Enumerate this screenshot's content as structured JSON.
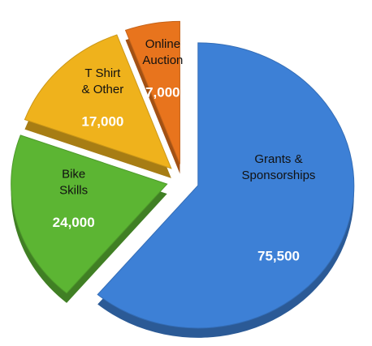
{
  "chart_data": {
    "type": "pie",
    "categories": [
      "Grants &\nSponsorships",
      "Bike\nSkills",
      "T Shirt\n& Other",
      "Online\nAuction"
    ],
    "values": [
      75500,
      24000,
      17000,
      7000
    ],
    "value_labels": [
      "75,500",
      "24,000",
      "17,000",
      "7,000"
    ],
    "colors": [
      "#3d80d6",
      "#5cb533",
      "#efb21c",
      "#e8741d"
    ]
  }
}
